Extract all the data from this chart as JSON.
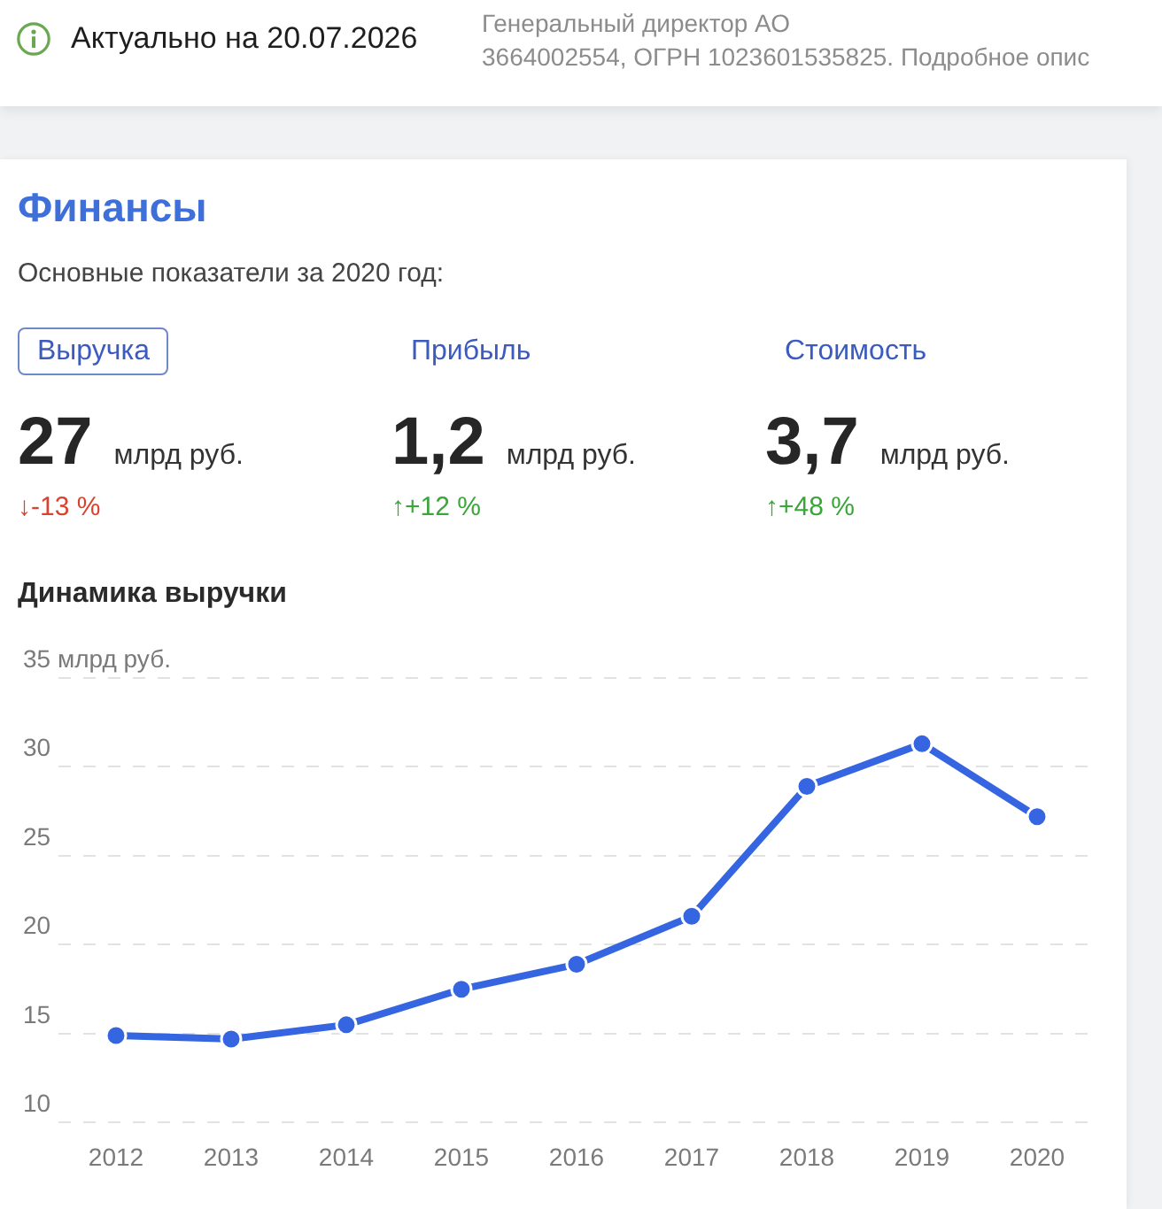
{
  "chart_data": [
    {
      "type": "other",
      "annotations": [
        "Актуально на 20.07.2026",
        "Генеральный директор АО",
        "3664002554, ОГРН 1023601535825. Подробное опис"
      ]
    },
    {
      "type": "other",
      "title": "Финансы",
      "subtitle": "Основные показатели за 2020 год:",
      "annotations": [
        "Выручка",
        "27",
        "млрд руб.",
        "↓-13 %",
        "Прибыль",
        "1,2",
        "млрд руб.",
        "↑+12 %",
        "Стоимость",
        "3,7",
        "млрд руб.",
        "↑+48 %"
      ]
    },
    {
      "type": "line",
      "title": "Динамика выручки",
      "categories": [
        "2012",
        "2013",
        "2014",
        "2015",
        "2016",
        "2017",
        "2018",
        "2019",
        "2020"
      ],
      "series": [
        {
          "color": "#3565e0",
          "values": [
            14.9,
            14.7,
            15.5,
            17.5,
            18.9,
            21.6,
            28.9,
            31.3,
            27.2
          ]
        }
      ],
      "ylim": [
        10,
        35
      ],
      "yticks": [
        10,
        15,
        20,
        25,
        30,
        {
          "value": 35,
          "label": "35 млрд руб."
        }
      ],
      "grid": "y",
      "legend": false,
      "marker": "circle",
      "line_style": "solid"
    }
  ]
}
